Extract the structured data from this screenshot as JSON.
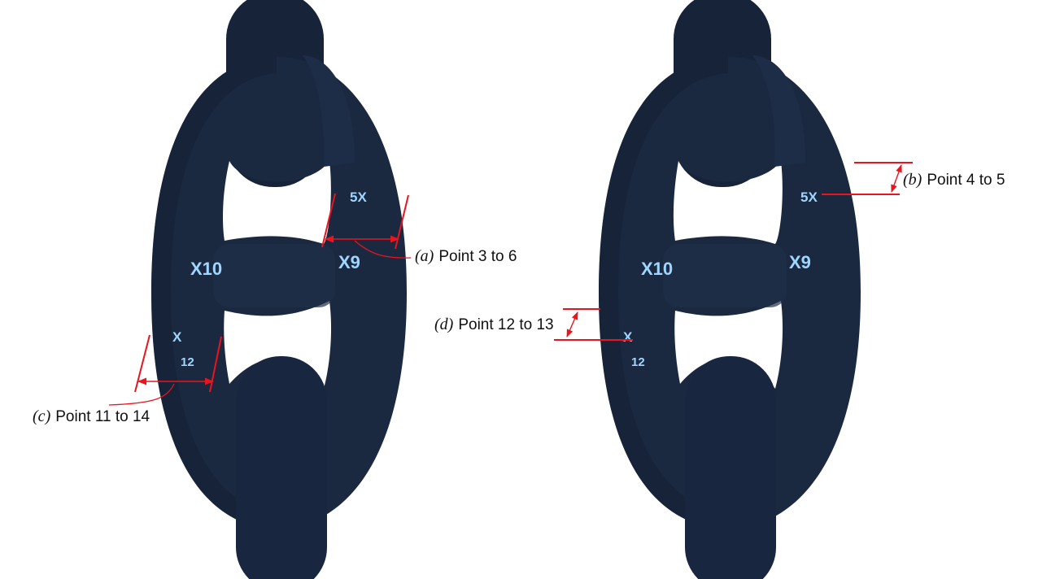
{
  "colors": {
    "background": "#ffffff",
    "chain_steel": "#1b2940",
    "chain_shadow": "#111a2b",
    "chalk_marks": "#9fd6ff",
    "annotation_red": "#e8141e"
  },
  "chalk_marks": {
    "left": {
      "x10": "X10",
      "x9": "X9",
      "x5": "5X",
      "x12_x": "X",
      "x12_n": "12"
    },
    "right": {
      "x10": "X10",
      "x9": "X9",
      "x5": "5X",
      "x12_x": "X",
      "x12_n": "12"
    }
  },
  "annotations": {
    "a": {
      "letter": "a",
      "text": "Point 3 to 6"
    },
    "b": {
      "letter": "b",
      "text": "Point 4 to 5"
    },
    "c": {
      "letter": "c",
      "text": "Point 11 to 14"
    },
    "d": {
      "letter": "d",
      "text": "Point 12 to 13"
    }
  }
}
